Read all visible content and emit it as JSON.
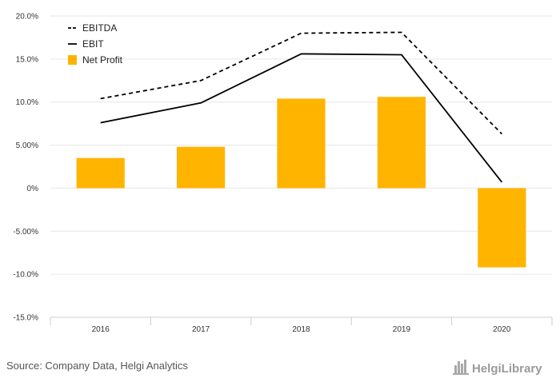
{
  "chart_data": {
    "type": "bar",
    "categories": [
      "2016",
      "2017",
      "2018",
      "2019",
      "2020"
    ],
    "series": [
      {
        "name": "EBITDA",
        "kind": "line",
        "style": "dashed",
        "color": "#000000",
        "values": [
          10.4,
          12.5,
          18.0,
          18.1,
          6.3
        ]
      },
      {
        "name": "EBIT",
        "kind": "line",
        "style": "solid",
        "color": "#000000",
        "values": [
          7.6,
          9.9,
          15.6,
          15.5,
          0.7
        ]
      },
      {
        "name": "Net Profit",
        "kind": "bar",
        "color": "#FFB400",
        "values": [
          3.5,
          4.8,
          10.4,
          10.6,
          -9.2
        ]
      }
    ],
    "yticks": [
      "20.0%",
      "15.0%",
      "10.0%",
      "5.00%",
      "0%",
      "-5.00%",
      "-10.0%",
      "-15.0%"
    ],
    "ylim": [
      -15,
      20
    ],
    "grid": true,
    "legend_position": "top-left"
  },
  "footer": {
    "source": "Source: Company Data, Helgi Analytics",
    "logo_text": "HelgiLibrary"
  },
  "colors": {
    "bar": "#FFB400",
    "grid": "#e6e6e6",
    "axis": "#cccccc"
  }
}
